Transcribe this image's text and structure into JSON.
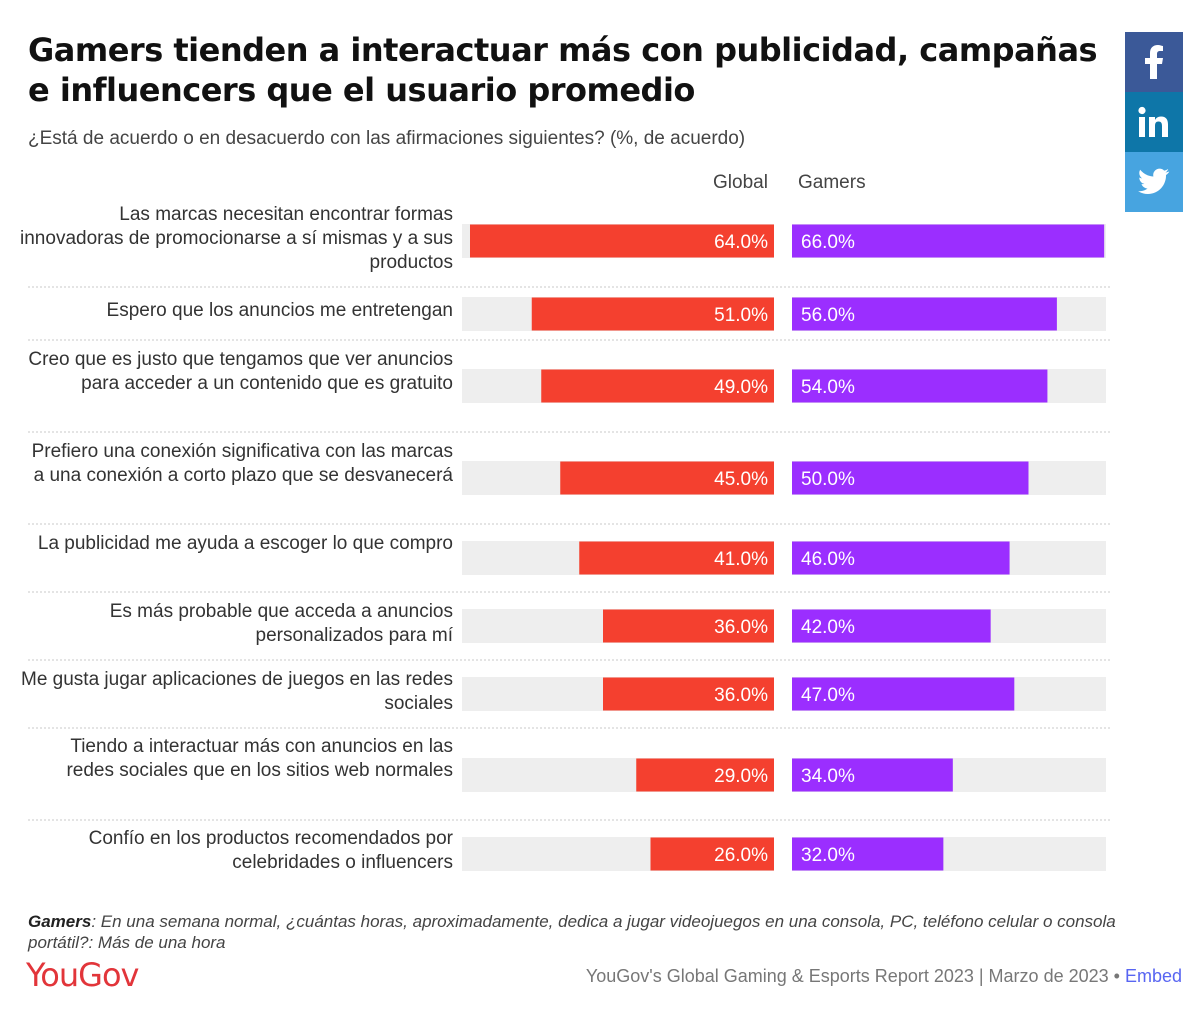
{
  "title": "Gamers tienden a interactuar más con publicidad, campañas e influencers que el usuario promedio",
  "subtitle": "¿Está de acuerdo o en desacuerdo con las afirmaciones siguientes? (%, de acuerdo)",
  "social": {
    "facebook": "f",
    "linkedin": "in"
  },
  "icons": {
    "facebook": "facebook-icon",
    "linkedin": "linkedin-icon",
    "twitter": "twitter-icon"
  },
  "footer": {
    "note_label": "Gamers",
    "note_text": ": En una semana normal, ¿cuántas horas, aproximadamente, dedica a jugar videojuegos en una consola, PC, teléfono celular o consola portátil?: Más de una hora",
    "logo": "YouGov",
    "source": "YouGov's Global Gaming & Esports Report 2023 | Marzo de 2023 •",
    "embed": "Embed"
  },
  "colors": {
    "global": "#f4402f",
    "gamers": "#9b2eff",
    "track": "#eeeeee"
  },
  "chart_data": {
    "type": "bar",
    "orientation": "horizontal",
    "value_suffix": "%",
    "categories": [
      "Las marcas necesitan encontrar formas innovadoras de promocionarse a sí mismas y a sus productos",
      "Espero que los anuncios me entretengan",
      "Creo que es justo que tengamos que ver anuncios para acceder a un contenido que es gratuito",
      "Prefiero una conexión significativa con las marcas a una conexión a corto plazo que se desvanecerá",
      "La publicidad me ayuda a escoger lo que compro",
      "Es más probable que acceda a anuncios personalizados para mí",
      "Me gusta jugar aplicaciones de juegos en las redes sociales",
      "Tiendo a interactuar más con anuncios en las redes sociales que en los sitios web normales",
      "Confío en los productos recomendados por celebridades o influencers"
    ],
    "series": [
      {
        "name": "Global",
        "values": [
          64.0,
          51.0,
          49.0,
          45.0,
          41.0,
          36.0,
          36.0,
          29.0,
          26.0
        ]
      },
      {
        "name": "Gamers",
        "values": [
          66.0,
          56.0,
          54.0,
          50.0,
          46.0,
          42.0,
          47.0,
          34.0,
          32.0
        ]
      }
    ],
    "xlim": [
      0,
      66
    ]
  }
}
